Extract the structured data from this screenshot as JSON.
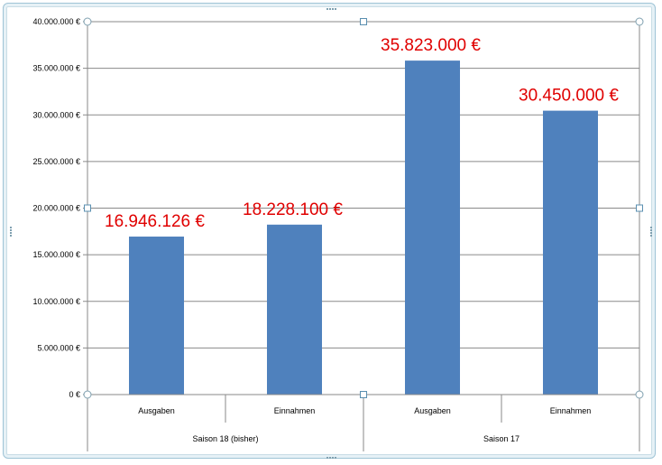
{
  "chart_data": {
    "type": "bar",
    "title": "",
    "xlabel": "",
    "ylabel": "",
    "ylim": [
      0,
      40000000
    ],
    "y_ticks": [
      {
        "value": 0,
        "label": "0 €"
      },
      {
        "value": 5000000,
        "label": "5.000.000 €"
      },
      {
        "value": 10000000,
        "label": "10.000.000 €"
      },
      {
        "value": 15000000,
        "label": "15.000.000 €"
      },
      {
        "value": 20000000,
        "label": "20.000.000 €"
      },
      {
        "value": 25000000,
        "label": "25.000.000 €"
      },
      {
        "value": 30000000,
        "label": "30.000.000 €"
      },
      {
        "value": 35000000,
        "label": "35.000.000 €"
      },
      {
        "value": 40000000,
        "label": "40.000.000 €"
      }
    ],
    "grid": true,
    "legend": "none",
    "bar_color": "#4f81bd",
    "label_color": "#e00000",
    "groups": [
      {
        "name": "Saison 18 (bisher)",
        "categories": [
          "Ausgaben",
          "Einnahmen"
        ]
      },
      {
        "name": "Saison 17",
        "categories": [
          "Ausgaben",
          "Einnahmen"
        ]
      }
    ],
    "categories": [
      "Ausgaben",
      "Einnahmen",
      "Ausgaben",
      "Einnahmen"
    ],
    "values": [
      16946126,
      18228100,
      35823000,
      30450000
    ],
    "data_labels": [
      "16.946.126 €",
      "18.228.100 €",
      "35.823.000 €",
      "30.450.000 €"
    ]
  }
}
